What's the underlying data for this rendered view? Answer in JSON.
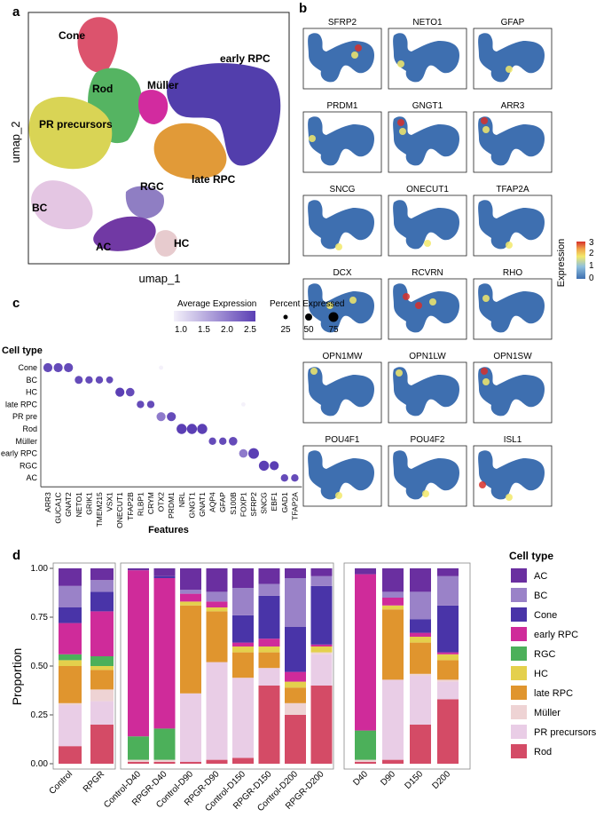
{
  "panel_a": {
    "letter": "a",
    "xlabel": "umap_1",
    "ylabel": "umap_2",
    "clusters": [
      {
        "name": "Cone",
        "color": "#DB4A66"
      },
      {
        "name": "Rod",
        "color": "#4CB05A"
      },
      {
        "name": "Müller",
        "color": "#D0209A"
      },
      {
        "name": "early RPC",
        "color": "#4934A8"
      },
      {
        "name": "PR precursors",
        "color": "#D8D24C"
      },
      {
        "name": "late RPC",
        "color": "#E0952E"
      },
      {
        "name": "RGC",
        "color": "#8A78C0"
      },
      {
        "name": "BC",
        "color": "#E3C4E2"
      },
      {
        "name": "AC",
        "color": "#6A2FA0"
      },
      {
        "name": "HC",
        "color": "#E6C9CC"
      }
    ]
  },
  "panel_b": {
    "letter": "b",
    "genes": [
      "SFRP2",
      "NETO1",
      "GFAP",
      "PRDM1",
      "GNGT1",
      "ARR3",
      "SNCG",
      "ONECUT1",
      "TFAP2A",
      "DCX",
      "RCVRN",
      "RHO",
      "OPN1MW",
      "OPN1LW",
      "OPN1SW",
      "POU4F1",
      "POU4F2",
      "ISL1"
    ],
    "colorbar_title": "Expression",
    "colorbar_ticks": [
      "0",
      "1",
      "2",
      "3"
    ],
    "colors": {
      "low": "#3E6FB0",
      "mid": "#F2E96B",
      "high": "#D7302A"
    }
  },
  "panel_c": {
    "letter": "c",
    "ytitle": "Cell type",
    "xtitle": "Features",
    "legend_expr_title": "Average Expression",
    "legend_expr_ticks": [
      "1.0",
      "1.5",
      "2.0",
      "2.5"
    ],
    "legend_pct_title": "Percent Expressed",
    "legend_pct_ticks": [
      "25",
      "50",
      "75"
    ]
  },
  "panel_d": {
    "letter": "d",
    "ylabel": "Proportion",
    "yticks": [
      "0.00",
      "0.25",
      "0.50",
      "0.75",
      "1.00"
    ],
    "legend_title": "Cell type"
  },
  "chart_data": [
    {
      "type": "dotplot",
      "title": "",
      "cell_types": [
        "Cone",
        "BC",
        "HC",
        "late RPC",
        "PR pre",
        "Rod",
        "Müller",
        "early RPC",
        "RGC",
        "AC"
      ],
      "features": [
        "ARR3",
        "GUCA1C",
        "GNAT2",
        "NETO1",
        "GRIK1",
        "TMEM215",
        "VSX1",
        "ONECUT1",
        "TFAP2B",
        "RLBP1",
        "CRYM",
        "OTX2",
        "PRDM1",
        "NRL",
        "GNGT1",
        "GNAT1",
        "AQP4",
        "GFAP",
        "S100B",
        "FOXP1",
        "SFRP2",
        "SNCG",
        "EBF1",
        "GAD1",
        "TFAP2A"
      ],
      "dots": [
        {
          "cell": "Cone",
          "feature": "ARR3",
          "expr": 2.4,
          "pct": 60
        },
        {
          "cell": "Cone",
          "feature": "GUCA1C",
          "expr": 2.4,
          "pct": 60
        },
        {
          "cell": "Cone",
          "feature": "GNAT2",
          "expr": 2.4,
          "pct": 60
        },
        {
          "cell": "Cone",
          "feature": "OTX2",
          "expr": 1.0,
          "pct": 15
        },
        {
          "cell": "BC",
          "feature": "NETO1",
          "expr": 2.4,
          "pct": 50
        },
        {
          "cell": "BC",
          "feature": "GRIK1",
          "expr": 2.4,
          "pct": 45
        },
        {
          "cell": "BC",
          "feature": "TMEM215",
          "expr": 2.4,
          "pct": 45
        },
        {
          "cell": "BC",
          "feature": "VSX1",
          "expr": 2.4,
          "pct": 40
        },
        {
          "cell": "HC",
          "feature": "ONECUT1",
          "expr": 2.5,
          "pct": 60
        },
        {
          "cell": "HC",
          "feature": "TFAP2B",
          "expr": 2.4,
          "pct": 55
        },
        {
          "cell": "late RPC",
          "feature": "RLBP1",
          "expr": 2.4,
          "pct": 45
        },
        {
          "cell": "late RPC",
          "feature": "CRYM",
          "expr": 2.4,
          "pct": 45
        },
        {
          "cell": "late RPC",
          "feature": "FOXP1",
          "expr": 1.0,
          "pct": 15
        },
        {
          "cell": "PR pre",
          "feature": "OTX2",
          "expr": 2.0,
          "pct": 60
        },
        {
          "cell": "PR pre",
          "feature": "PRDM1",
          "expr": 2.4,
          "pct": 60
        },
        {
          "cell": "Rod",
          "feature": "NRL",
          "expr": 2.5,
          "pct": 70
        },
        {
          "cell": "Rod",
          "feature": "GNGT1",
          "expr": 2.5,
          "pct": 70
        },
        {
          "cell": "Rod",
          "feature": "GNAT1",
          "expr": 2.5,
          "pct": 70
        },
        {
          "cell": "Müller",
          "feature": "AQP4",
          "expr": 2.4,
          "pct": 45
        },
        {
          "cell": "Müller",
          "feature": "GFAP",
          "expr": 2.4,
          "pct": 45
        },
        {
          "cell": "Müller",
          "feature": "S100B",
          "expr": 2.4,
          "pct": 55
        },
        {
          "cell": "early RPC",
          "feature": "FOXP1",
          "expr": 2.0,
          "pct": 55
        },
        {
          "cell": "early RPC",
          "feature": "SFRP2",
          "expr": 2.5,
          "pct": 75
        },
        {
          "cell": "RGC",
          "feature": "SNCG",
          "expr": 2.5,
          "pct": 70
        },
        {
          "cell": "RGC",
          "feature": "EBF1",
          "expr": 2.5,
          "pct": 60
        },
        {
          "cell": "AC",
          "feature": "GAD1",
          "expr": 2.4,
          "pct": 45
        },
        {
          "cell": "AC",
          "feature": "TFAP2A",
          "expr": 2.4,
          "pct": 45
        }
      ],
      "expr_range": [
        1.0,
        2.5
      ],
      "pct_range": [
        25,
        75
      ],
      "xlabel": "Features",
      "ylabel": "Cell type"
    },
    {
      "type": "stacked_bar",
      "ylabel": "Proportion",
      "ylim": [
        0,
        1
      ],
      "stack_order_bottom_to_top": [
        "Rod",
        "PR precursors",
        "Müller",
        "late RPC",
        "HC",
        "RGC",
        "early RPC",
        "Cone",
        "BC",
        "AC"
      ],
      "colors": {
        "AC": "#6A2FA0",
        "BC": "#9A82C8",
        "Cone": "#4934A8",
        "early RPC": "#CF2B9A",
        "RGC": "#4CB05A",
        "HC": "#E4D04C",
        "late RPC": "#E0952E",
        "Müller": "#EED3D4",
        "PR precursors": "#E9CDE6",
        "Rod": "#D44B66"
      },
      "groups": [
        {
          "categories": [
            "Control",
            "RPGR"
          ],
          "series": {
            "Rod": [
              0.09,
              0.2
            ],
            "PR precursors": [
              0.21,
              0.12
            ],
            "Müller": [
              0.01,
              0.06
            ],
            "late RPC": [
              0.19,
              0.1
            ],
            "HC": [
              0.03,
              0.02
            ],
            "RGC": [
              0.03,
              0.05
            ],
            "early RPC": [
              0.16,
              0.23
            ],
            "Cone": [
              0.08,
              0.1
            ],
            "BC": [
              0.11,
              0.06
            ],
            "AC": [
              0.09,
              0.06
            ]
          }
        },
        {
          "categories": [
            "Control-D40",
            "RPGR-D40",
            "Control-D90",
            "RPGR-D90",
            "Control-D150",
            "RPGR-D150",
            "Control-D200",
            "RPGR-D200"
          ],
          "series": {
            "Rod": [
              0.01,
              0.01,
              0.01,
              0.02,
              0.03,
              0.4,
              0.25,
              0.4
            ],
            "PR precursors": [
              0.0,
              0.0,
              0.35,
              0.5,
              0.41,
              0.09,
              0.0,
              0.16
            ],
            "Müller": [
              0.01,
              0.01,
              0.0,
              0.0,
              0.0,
              0.0,
              0.06,
              0.01
            ],
            "late RPC": [
              0.0,
              0.0,
              0.45,
              0.26,
              0.13,
              0.08,
              0.08,
              0.0
            ],
            "HC": [
              0.0,
              0.0,
              0.02,
              0.02,
              0.03,
              0.03,
              0.03,
              0.03
            ],
            "RGC": [
              0.12,
              0.16,
              0.0,
              0.0,
              0.0,
              0.0,
              0.0,
              0.0
            ],
            "early RPC": [
              0.85,
              0.77,
              0.04,
              0.03,
              0.02,
              0.04,
              0.05,
              0.01
            ],
            "Cone": [
              0.0,
              0.01,
              0.0,
              0.0,
              0.14,
              0.22,
              0.23,
              0.3
            ],
            "BC": [
              0.0,
              0.0,
              0.02,
              0.05,
              0.14,
              0.06,
              0.25,
              0.05
            ],
            "AC": [
              0.01,
              0.04,
              0.11,
              0.12,
              0.1,
              0.08,
              0.05,
              0.04
            ]
          }
        },
        {
          "categories": [
            "D40",
            "D90",
            "D150",
            "D200"
          ],
          "series": {
            "Rod": [
              0.01,
              0.02,
              0.2,
              0.33
            ],
            "PR precursors": [
              0.0,
              0.41,
              0.25,
              0.09
            ],
            "Müller": [
              0.01,
              0.0,
              0.01,
              0.01
            ],
            "late RPC": [
              0.0,
              0.36,
              0.16,
              0.1
            ],
            "HC": [
              0.0,
              0.02,
              0.03,
              0.03
            ],
            "RGC": [
              0.15,
              0.0,
              0.0,
              0.0
            ],
            "early RPC": [
              0.8,
              0.04,
              0.02,
              0.01
            ],
            "Cone": [
              0.0,
              0.0,
              0.07,
              0.24
            ],
            "BC": [
              0.0,
              0.03,
              0.14,
              0.15
            ],
            "AC": [
              0.03,
              0.12,
              0.12,
              0.04
            ]
          }
        }
      ],
      "legend": [
        "AC",
        "BC",
        "Cone",
        "early RPC",
        "RGC",
        "HC",
        "late RPC",
        "Müller",
        "PR precursors",
        "Rod"
      ]
    }
  ]
}
